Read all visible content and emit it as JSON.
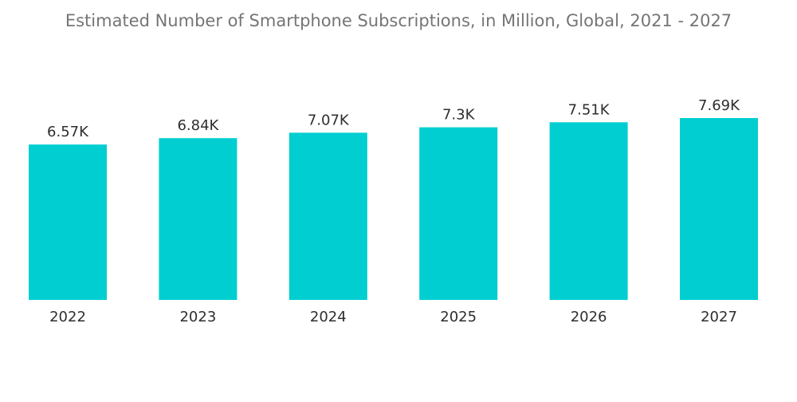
{
  "chart_data": {
    "type": "bar",
    "title": "Estimated Number of Smartphone Subscriptions, in Million, Global, 2021 - 2027",
    "xlabel": "",
    "ylabel": "",
    "categories": [
      "2022",
      "2023",
      "2024",
      "2025",
      "2026",
      "2027"
    ],
    "values": [
      6570,
      6840,
      7070,
      7300,
      7510,
      7690
    ],
    "value_labels": [
      "6.57K",
      "6.84K",
      "7.07K",
      "7.3K",
      "7.51K",
      "7.69K"
    ],
    "ylim": [
      0,
      7690
    ],
    "grid": false,
    "legend": "none",
    "colors": {
      "bar": "#00CED1",
      "text": "#2E2E2E",
      "title": "#757575"
    }
  }
}
